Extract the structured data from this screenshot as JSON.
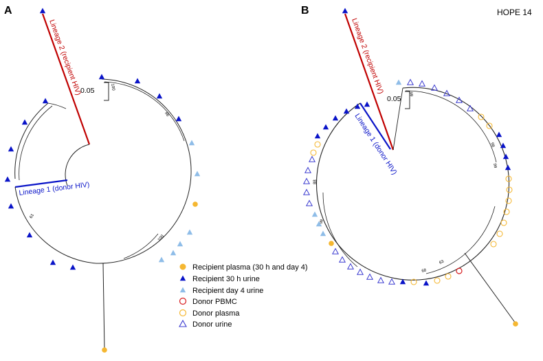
{
  "panel_a": {
    "label": "A",
    "lineage2_label": "Lineage 2 (recipient HIV)",
    "lineage1_label": "Lineage 1 (donor HIV)",
    "scale_label": "0.05",
    "bootstrap_labels": [
      "100",
      "86",
      "100",
      "61"
    ]
  },
  "panel_b": {
    "label": "B",
    "title": "HOPE 14",
    "lineage2_label": "Lineage 2 (recipient HIV)",
    "lineage1_label": "Lineage 1 (donor HIV)",
    "scale_label": "0.05",
    "bootstrap_labels": [
      "99",
      "98",
      "99",
      "88",
      "98",
      "68",
      "63"
    ]
  },
  "legend": {
    "items": [
      {
        "label": "Recipient plasma (30 h and day 4)",
        "marker": "circle-filled",
        "color": "#f5b731"
      },
      {
        "label": "Recipient 30 h urine",
        "marker": "triangle-filled",
        "color": "#0a14c8"
      },
      {
        "label": "Recipient day 4 urine",
        "marker": "triangle-filled",
        "color": "#8fbde8"
      },
      {
        "label": "Donor PBMC",
        "marker": "circle-open",
        "color": "#d7191c"
      },
      {
        "label": "Donor plasma",
        "marker": "circle-open",
        "color": "#f5b731"
      },
      {
        "label": "Donor urine",
        "marker": "triangle-open",
        "color": "#3a3ad0"
      }
    ]
  },
  "colors": {
    "lineage2": "#c00000",
    "lineage1": "#0a14c8",
    "tree": "#222222"
  }
}
